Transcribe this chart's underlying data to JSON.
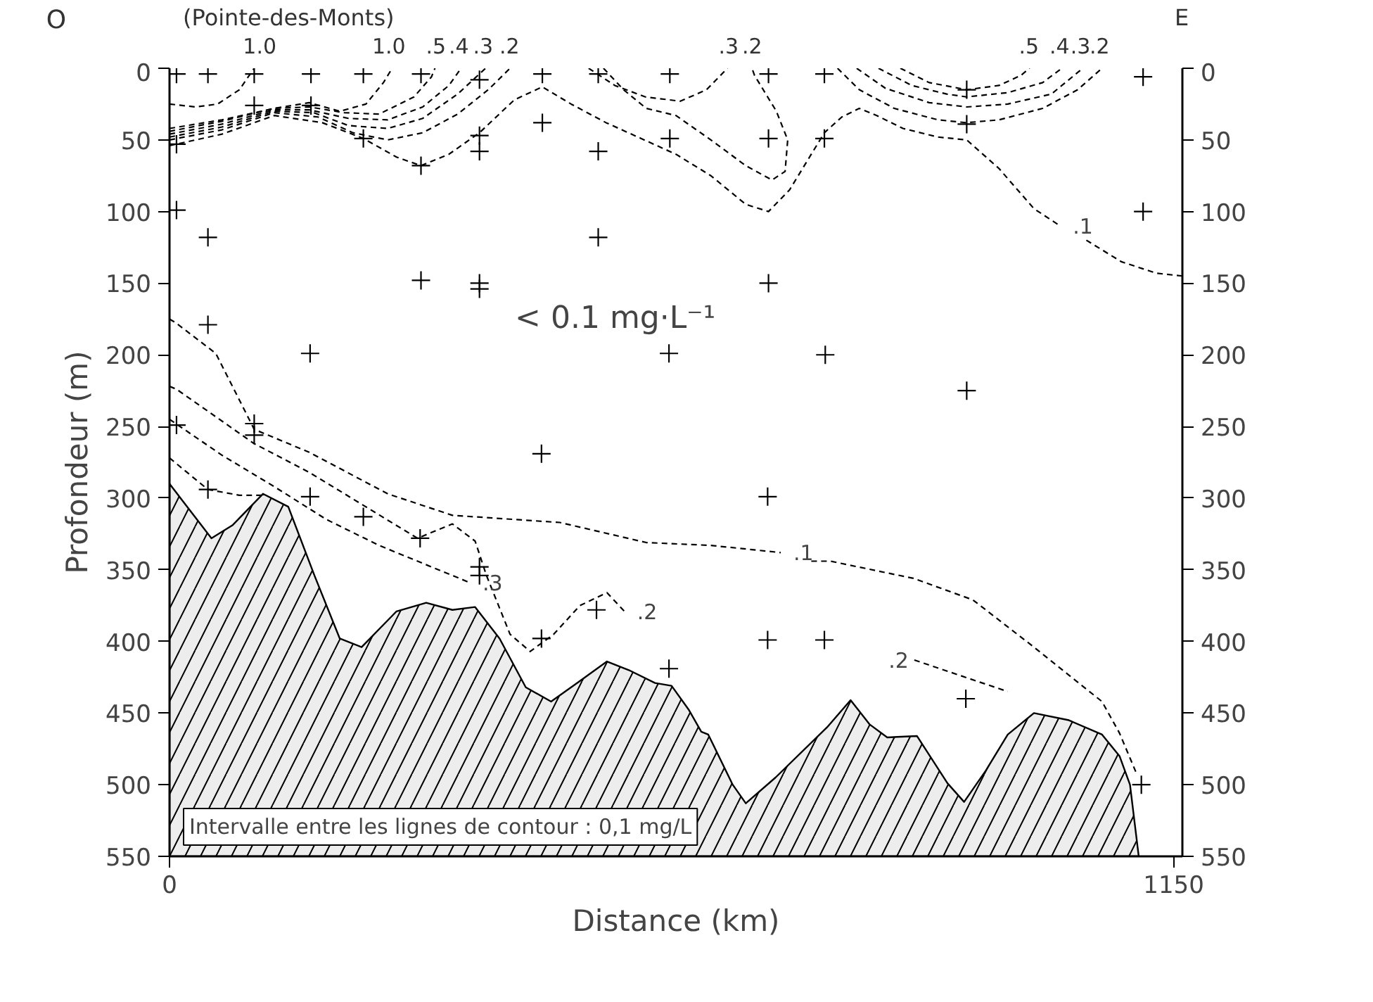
{
  "chart_data": {
    "type": "line",
    "xlabel": "Distance (km)",
    "ylabel": "Profondeur (m)",
    "xlim": [
      0,
      1160
    ],
    "xticks": [
      0,
      1150
    ],
    "ylim": [
      550,
      0
    ],
    "yticks": [
      0,
      50,
      100,
      150,
      200,
      250,
      300,
      350,
      400,
      450,
      500,
      550
    ],
    "y2lim": [
      550,
      0
    ],
    "y2ticks": [
      0,
      50,
      100,
      150,
      200,
      250,
      300,
      350,
      400,
      450,
      500,
      550
    ],
    "grid": false,
    "line_style": "dashed",
    "series": [
      {
        "type": "area",
        "color": "#000000",
        "line_style": "solid",
        "x": [
          0,
          0,
          48,
          72,
          107,
          136,
          166,
          195,
          220,
          260,
          294,
          324,
          350,
          378,
          408,
          437,
          467,
          501,
          526,
          556,
          575,
          595,
          609,
          617,
          645,
          660,
          694,
          753,
          780,
          802,
          822,
          856,
          891,
          910,
          935,
          960,
          990,
          1030,
          1068,
          1088,
          1100,
          1110
        ],
        "values": [
          550,
          290,
          328,
          319,
          297,
          306,
          354,
          398,
          404,
          379,
          373,
          378,
          376,
          398,
          432,
          442,
          429,
          414,
          420,
          429,
          431,
          448,
          463,
          465,
          500,
          513,
          495,
          460,
          441,
          458,
          467,
          466,
          499,
          512,
          490,
          465,
          450,
          455,
          465,
          480,
          500,
          550
        ]
      },
      {
        "color": "#000000",
        "x": [
          0,
          30,
          55,
          80,
          97
        ],
        "values": [
          25,
          27,
          25,
          15,
          0
        ]
      },
      {
        "color": "#000000",
        "x": [
          0,
          60,
          120,
          160,
          195,
          225,
          245,
          255
        ],
        "values": [
          42,
          36,
          28,
          24,
          30,
          25,
          10,
          0
        ]
      },
      {
        "color": "#000000",
        "x": [
          0,
          60,
          120,
          160,
          200,
          240,
          280,
          300,
          304
        ],
        "values": [
          44,
          37,
          28,
          27,
          31,
          32,
          20,
          6,
          0
        ]
      },
      {
        "color": "#000000",
        "x": [
          0,
          60,
          120,
          160,
          205,
          250,
          290,
          320,
          334
        ],
        "values": [
          46,
          39,
          29,
          29,
          35,
          36,
          27,
          12,
          0
        ]
      },
      {
        "color": "#000000",
        "x": [
          0,
          60,
          120,
          165,
          205,
          250,
          290,
          330,
          362
        ],
        "values": [
          48,
          41,
          30,
          31,
          40,
          42,
          35,
          18,
          0
        ]
      },
      {
        "color": "#000000",
        "x": [
          0,
          60,
          120,
          170,
          210,
          250,
          290,
          330,
          365,
          390
        ],
        "values": [
          50,
          43,
          31,
          34,
          45,
          50,
          45,
          32,
          15,
          0
        ]
      },
      {
        "color": "#000000",
        "x": [
          0,
          60,
          120,
          175,
          222,
          260,
          288,
          320,
          355,
          395,
          427,
          460,
          500,
          540,
          580,
          620,
          660,
          686,
          710,
          735,
          750,
          770,
          790,
          810,
          840,
          880,
          913,
          950,
          990,
          1020
        ],
        "values": [
          54,
          46,
          33,
          38,
          49,
          62,
          68,
          60,
          45,
          22,
          13,
          25,
          38,
          49,
          60,
          75,
          95,
          100,
          85,
          60,
          45,
          34,
          28,
          33,
          42,
          48,
          50,
          70,
          98,
          110
        ]
      },
      {
        "color": "#000000",
        "x": [
          1050,
          1090,
          1130,
          1160
        ],
        "values": [
          120,
          135,
          143,
          145
        ]
      },
      {
        "color": "#000000",
        "x": [
          480,
          510,
          545,
          585,
          615,
          639
        ],
        "values": [
          0,
          12,
          20,
          23,
          15,
          0
        ]
      },
      {
        "color": "#000000",
        "x": [
          497,
          520,
          546,
          580,
          620,
          660,
          690,
          705,
          708,
          695,
          670,
          667
        ],
        "values": [
          0,
          15,
          28,
          33,
          50,
          68,
          78,
          72,
          50,
          30,
          5,
          0
        ]
      },
      {
        "color": "#000000",
        "x": [
          765,
          790,
          830,
          880,
          913,
          950,
          1000,
          1040,
          1068
        ],
        "values": [
          0,
          15,
          28,
          36,
          38,
          36,
          28,
          15,
          0
        ]
      },
      {
        "color": "#000000",
        "x": [
          787,
          820,
          870,
          913,
          960,
          1010,
          1046
        ],
        "values": [
          0,
          14,
          24,
          27,
          25,
          18,
          0
        ]
      },
      {
        "color": "#000000",
        "x": [
          812,
          850,
          890,
          913,
          960,
          1000,
          1022
        ],
        "values": [
          0,
          12,
          18,
          20,
          17,
          10,
          0
        ]
      },
      {
        "color": "#000000",
        "x": [
          837,
          870,
          913,
          950,
          975,
          985
        ],
        "values": [
          0,
          10,
          15,
          12,
          5,
          0
        ]
      },
      {
        "color": "#000000",
        "x": [
          0,
          8,
          53,
          97,
          160,
          250,
          324,
          447,
          546,
          620,
          700
        ],
        "values": [
          175,
          178,
          199,
          252,
          268,
          297,
          312,
          317,
          331,
          333,
          338
        ]
      },
      {
        "color": "#000000",
        "x": [
          735,
          757,
          852,
          920,
          990,
          1068,
          1088,
          1108
        ],
        "values": [
          344,
          344,
          356,
          371,
          404,
          442,
          464,
          493
        ]
      },
      {
        "color": "#000000",
        "x": [
          0,
          8,
          97,
          160,
          222,
          284,
          324,
          350,
          363,
          390,
          413,
          440,
          470,
          501,
          521
        ],
        "values": [
          222,
          224,
          262,
          282,
          305,
          328,
          318,
          330,
          354,
          395,
          407,
          395,
          375,
          366,
          379
        ]
      },
      {
        "color": "#000000",
        "x": [
          0,
          60,
          120,
          180,
          240,
          300,
          344
        ],
        "values": [
          245,
          270,
          292,
          315,
          333,
          348,
          359
        ]
      },
      {
        "color": "#000000",
        "x": [
          0,
          44,
          80,
          105
        ],
        "values": [
          272,
          294,
          298,
          298
        ]
      },
      {
        "color": "#000000",
        "x": [
          853,
          960
        ],
        "values": [
          413,
          435
        ]
      },
      {
        "type": "scatter",
        "marker": "cross",
        "color": "#000000",
        "x": [
          8,
          44,
          97,
          162,
          222,
          288,
          355,
          427,
          491,
          573,
          686,
          750,
          913,
          1115,
          8,
          97,
          162,
          222,
          288,
          355,
          355,
          427,
          491,
          573,
          686,
          750,
          913,
          1115,
          8,
          44,
          288,
          355,
          355,
          491,
          686,
          44,
          161,
          8,
          97,
          97,
          426,
          572,
          751,
          913,
          44,
          161,
          222,
          287,
          355,
          355,
          426,
          489,
          572,
          685,
          685,
          750,
          912,
          1113
        ],
        "values": [
          4,
          4,
          4,
          4,
          4,
          4,
          8,
          4,
          4,
          4,
          4,
          4,
          15,
          6,
          53,
          26,
          26,
          49,
          68,
          47,
          58,
          38,
          58,
          49,
          49,
          49,
          39,
          100,
          99,
          118,
          148,
          150,
          154,
          118,
          150,
          179,
          199,
          249,
          248,
          256,
          269,
          199,
          200,
          225,
          294,
          299,
          313,
          328,
          348,
          354,
          398,
          378,
          419,
          299,
          399,
          399,
          440,
          500
        ]
      }
    ],
    "annotations": [
      "O",
      "(Pointe-des-Monts)",
      "E",
      "Intervalle entre les lignes de contour : 0,1 mg/L",
      "< 0.1 mg·L⁻¹",
      {
        "text": "1.0",
        "x": 104,
        "y": 0
      },
      {
        "text": "1.0",
        "x": 252,
        "y": 0
      },
      {
        "text": ".5",
        "x": 306,
        "y": 0
      },
      {
        "text": ".4",
        "x": 332,
        "y": 0
      },
      {
        "text": ".3",
        "x": 360,
        "y": 0
      },
      {
        "text": ".2",
        "x": 390,
        "y": 0
      },
      {
        "text": ".3",
        "x": 641,
        "y": 0
      },
      {
        "text": ".2",
        "x": 668,
        "y": 0
      },
      {
        "text": ".5",
        "x": 985,
        "y": 0
      },
      {
        "text": ".4",
        "x": 1020,
        "y": 0
      },
      {
        "text": ".3",
        "x": 1044,
        "y": 0
      },
      {
        "text": ".2",
        "x": 1066,
        "y": 0
      },
      {
        "text": ".1",
        "x": 1020,
        "y": 110
      },
      {
        "text": ".1",
        "x": 700,
        "y": 338
      },
      {
        "text": ".2",
        "x": 521,
        "y": 379
      },
      {
        "text": ".3",
        "x": 344,
        "y": 359
      },
      {
        "text": ".2",
        "x": 853,
        "y": 413
      }
    ]
  }
}
